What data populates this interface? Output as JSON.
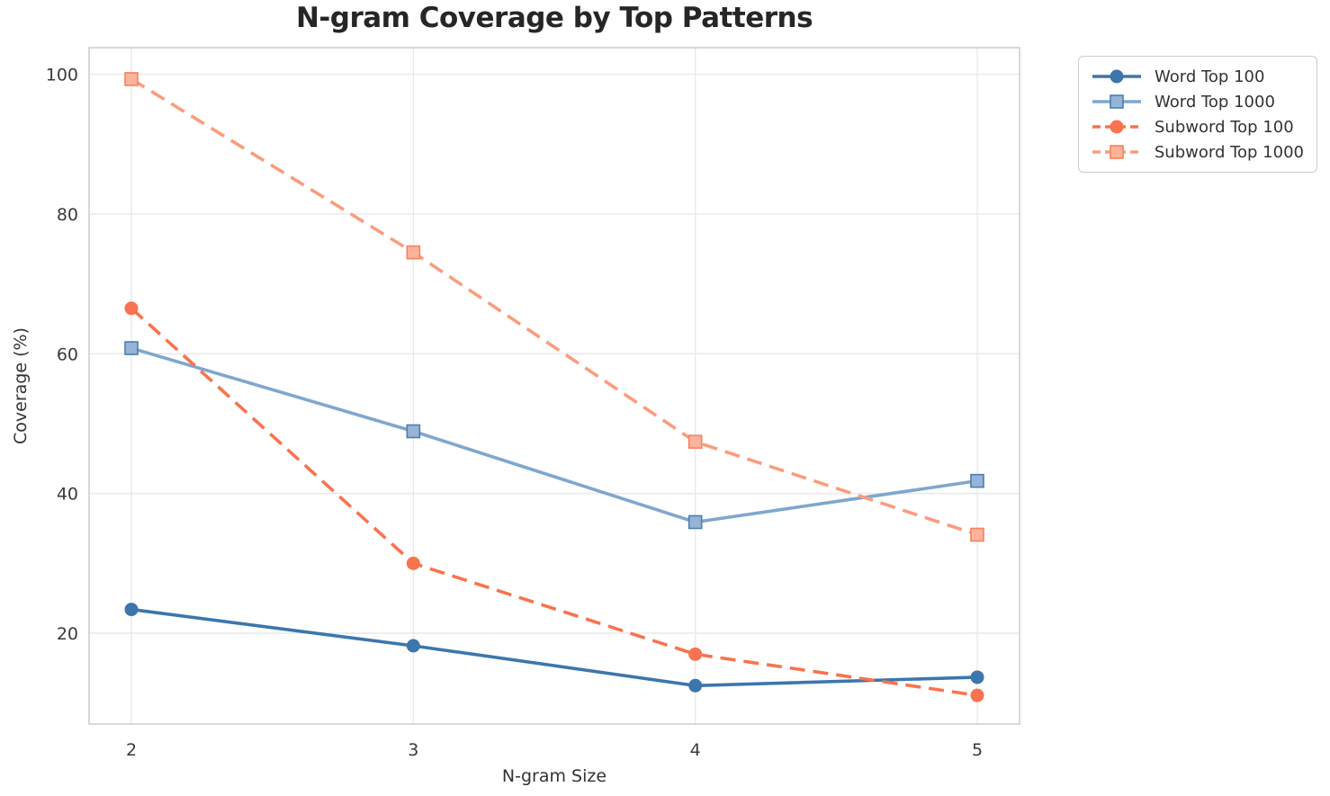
{
  "chart_data": {
    "type": "line",
    "title": "N-gram Coverage by Top Patterns",
    "xlabel": "N-gram Size",
    "ylabel": "Coverage (%)",
    "x": [
      2,
      3,
      4,
      5
    ],
    "xticks": [
      "2",
      "3",
      "4",
      "5"
    ],
    "yticks": [
      "20",
      "40",
      "60",
      "80",
      "100"
    ],
    "ytick_values": [
      20,
      40,
      60,
      80,
      100
    ],
    "xlim": [
      1.85,
      5.15
    ],
    "ylim": [
      7.0,
      103.8
    ],
    "grid": true,
    "legend_position": "outside-top-right",
    "series": [
      {
        "name": "Word Top 100",
        "values": [
          23.4,
          18.2,
          12.5,
          13.7
        ],
        "color": "#3c76ac",
        "marker": "circle",
        "line_style": "solid",
        "marker_face": "#3c76ac",
        "marker_edge": "#3c76ac"
      },
      {
        "name": "Word Top 1000",
        "values": [
          60.8,
          48.9,
          35.9,
          41.8
        ],
        "color": "#7fa7cd",
        "marker": "square",
        "line_style": "solid",
        "marker_face": "#95b4d6",
        "marker_edge": "#4c7fae"
      },
      {
        "name": "Subword Top 100",
        "values": [
          66.5,
          30.0,
          17.0,
          11.1
        ],
        "color": "#f8734f",
        "marker": "circle",
        "line_style": "dashed",
        "marker_face": "#f8734f",
        "marker_edge": "#f8734f"
      },
      {
        "name": "Subword Top 1000",
        "values": [
          99.3,
          74.5,
          47.4,
          34.1
        ],
        "color": "#fa9d7d",
        "marker": "square",
        "line_style": "dashed",
        "marker_face": "#fbb39a",
        "marker_edge": "#f8815e"
      }
    ],
    "colors": {
      "grid": "#e9e9e9",
      "spine": "#cccccc",
      "tick_label": "#3a3a3a",
      "title": "#262626",
      "axis_label": "#333333",
      "background": "#ffffff"
    }
  }
}
